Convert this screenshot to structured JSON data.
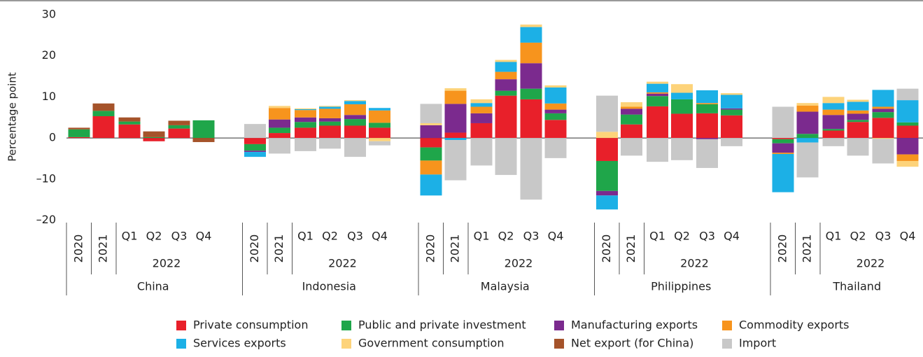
{
  "chart_data": {
    "type": "bar",
    "stacked": true,
    "y_label": "Percentage point",
    "ylim": [
      -20,
      30
    ],
    "yticks": [
      30,
      20,
      10,
      0,
      {
        "value": -10,
        "label": "–10"
      },
      {
        "value": -20,
        "label": "–20"
      }
    ],
    "groups": [
      {
        "name": "China",
        "categories": [
          "2020",
          "2021",
          "Q1",
          "Q2",
          "Q3",
          "Q4"
        ],
        "subgroup": "2022"
      },
      {
        "name": "Indonesia",
        "categories": [
          "2020",
          "2021",
          "Q1",
          "Q2",
          "Q3",
          "Q4"
        ],
        "subgroup": "2022"
      },
      {
        "name": "Malaysia",
        "categories": [
          "2020",
          "2021",
          "Q1",
          "Q2",
          "Q3",
          "Q4"
        ],
        "subgroup": "2022"
      },
      {
        "name": "Philippines",
        "categories": [
          "2020",
          "2021",
          "Q1",
          "Q2",
          "Q3",
          "Q4"
        ],
        "subgroup": "2022"
      },
      {
        "name": "Thailand",
        "categories": [
          "2020",
          "2021",
          "Q1",
          "Q2",
          "Q3",
          "Q4"
        ],
        "subgroup": "2022"
      }
    ],
    "series": [
      {
        "name": "Private consumption",
        "color": "#e8202a",
        "values": [
          0.2,
          5.3,
          3.3,
          -0.8,
          2.3,
          0,
          -1.5,
          1.2,
          2.5,
          3.0,
          3.0,
          2.5,
          -2.3,
          1.3,
          3.6,
          10.3,
          9.4,
          4.4,
          -5.6,
          3.3,
          7.7,
          5.9,
          6.0,
          5.5,
          -0.3,
          0,
          1.8,
          3.9,
          4.9,
          3.0
        ]
      },
      {
        "name": "Public and private investment",
        "color": "#1fa64a",
        "values": [
          1.9,
          1.3,
          0.7,
          0.2,
          0.8,
          4.3,
          -1.6,
          1.3,
          1.4,
          1.0,
          1.6,
          1.2,
          -3.2,
          0,
          0,
          1.2,
          2.6,
          1.6,
          -7.3,
          2.4,
          2.5,
          3.5,
          2.2,
          1.4,
          -1.0,
          1.0,
          0.4,
          0.5,
          1.4,
          0.8
        ]
      },
      {
        "name": "Manufacturing exports",
        "color": "#7b2a8e",
        "values": [
          0,
          0,
          0,
          0,
          0,
          0,
          -0.3,
          2.0,
          1.1,
          0.8,
          1.0,
          0,
          3.1,
          7.0,
          2.4,
          2.8,
          6.2,
          0.9,
          -1.1,
          1.4,
          0.6,
          0,
          -0.3,
          0.3,
          -2.3,
          5.4,
          3.4,
          1.5,
          0.8,
          -4.0
        ]
      },
      {
        "name": "Commodity exports",
        "color": "#f7941d",
        "values": [
          0,
          0,
          0,
          0,
          0,
          0,
          0,
          2.8,
          1.8,
          2.3,
          2.6,
          3.0,
          -3.4,
          3.2,
          1.6,
          1.8,
          5.0,
          1.5,
          0,
          0.5,
          0.3,
          0,
          0.3,
          0,
          -0.3,
          1.5,
          1.3,
          0.8,
          0.5,
          -1.6
        ]
      },
      {
        "name": "Services exports",
        "color": "#1cb0e6",
        "values": [
          0,
          0,
          0,
          0,
          0,
          0,
          -1.2,
          0,
          0.2,
          0.5,
          0.8,
          0.6,
          -5.1,
          -0.5,
          0.9,
          2.4,
          3.8,
          3.9,
          -3.4,
          0,
          2.1,
          1.6,
          3.1,
          3.3,
          -9.3,
          -1.1,
          1.6,
          2.1,
          4.1,
          5.4
        ]
      },
      {
        "name": "Government consumption",
        "color": "#fdd37a",
        "values": [
          0,
          0,
          0,
          0,
          0,
          0,
          0,
          0.5,
          0.2,
          0.2,
          0.2,
          -0.8,
          0.5,
          0.6,
          0.9,
          0.5,
          0.6,
          0.5,
          1.5,
          1.1,
          0.5,
          2.1,
          0,
          0.4,
          0,
          0.6,
          1.5,
          0.5,
          -0.2,
          -1.4
        ]
      },
      {
        "name": "Net export (for China)",
        "color": "#a5532a",
        "values": [
          0.4,
          1.8,
          1.0,
          1.4,
          1.1,
          -1.0,
          0,
          0,
          0,
          0,
          0,
          0,
          0,
          0,
          0,
          0,
          0,
          0,
          0,
          0,
          0,
          0,
          0,
          0,
          0,
          0,
          0,
          0,
          0,
          0
        ]
      },
      {
        "name": "Import",
        "color": "#c8c8c8",
        "values": [
          0,
          0,
          0,
          0,
          0,
          0,
          3.4,
          -3.8,
          -3.2,
          -2.6,
          -4.6,
          -1.0,
          4.7,
          -9.8,
          -6.7,
          -9.0,
          -15,
          -4.9,
          8.8,
          -4.3,
          -5.8,
          -5.4,
          -7.0,
          -2.0,
          7.6,
          -8.5,
          -2.0,
          -4.3,
          -6.0,
          2.8
        ]
      }
    ]
  }
}
